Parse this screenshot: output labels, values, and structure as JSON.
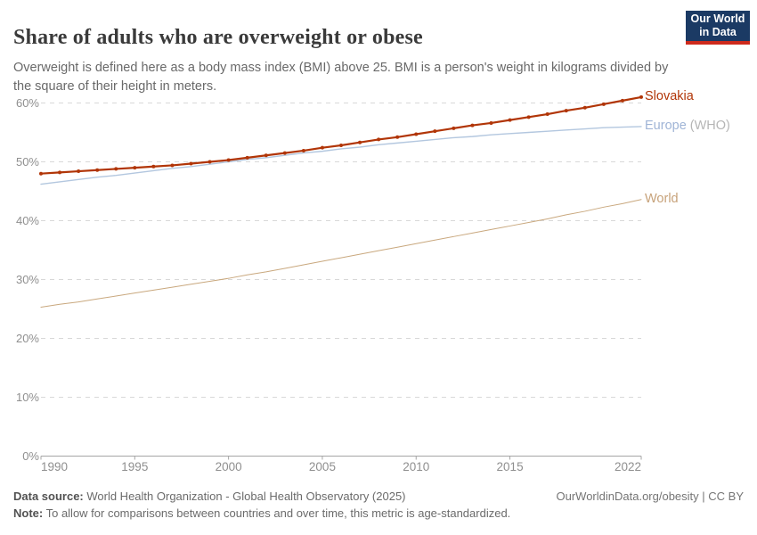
{
  "header": {
    "title": "Share of adults who are overweight or obese",
    "subtitle": "Overweight is defined here as a body mass index (BMI) above 25. BMI is a person's weight in kilograms divided by the square of their height in meters.",
    "logo": {
      "line1": "Our World",
      "line2": "in Data",
      "bg": "#1B3A64",
      "stripe": "#CE2A1C"
    }
  },
  "chart_data": {
    "type": "line",
    "title": "Share of adults who are overweight or obese",
    "xlabel": "",
    "ylabel": "",
    "x": [
      1990,
      1991,
      1992,
      1993,
      1994,
      1995,
      1996,
      1997,
      1998,
      1999,
      2000,
      2001,
      2002,
      2003,
      2004,
      2005,
      2006,
      2007,
      2008,
      2009,
      2010,
      2011,
      2012,
      2013,
      2014,
      2015,
      2016,
      2017,
      2018,
      2019,
      2020,
      2021,
      2022
    ],
    "series": [
      {
        "name": "Slovakia",
        "label": "Slovakia",
        "label_suffix": "",
        "color": "#B13507",
        "label_color": "#B13507",
        "markers": true,
        "line_width": 2.2,
        "values": [
          48.0,
          48.2,
          48.4,
          48.6,
          48.8,
          49.0,
          49.2,
          49.4,
          49.7,
          50.0,
          50.3,
          50.7,
          51.1,
          51.5,
          51.9,
          52.4,
          52.8,
          53.3,
          53.8,
          54.2,
          54.7,
          55.2,
          55.7,
          56.2,
          56.6,
          57.1,
          57.6,
          58.1,
          58.7,
          59.2,
          59.8,
          60.4,
          61.0
        ]
      },
      {
        "name": "Europe (WHO)",
        "label": "Europe",
        "label_suffix": " (WHO)",
        "color": "#B3C7DF",
        "label_color": "#9FB4D6",
        "markers": false,
        "line_width": 1.4,
        "values": [
          46.2,
          46.6,
          47.0,
          47.4,
          47.7,
          48.1,
          48.5,
          48.9,
          49.2,
          49.6,
          50.0,
          50.4,
          50.7,
          51.1,
          51.5,
          51.8,
          52.2,
          52.5,
          52.9,
          53.2,
          53.5,
          53.8,
          54.1,
          54.3,
          54.6,
          54.8,
          55.0,
          55.2,
          55.4,
          55.6,
          55.8,
          55.9,
          56.0
        ]
      },
      {
        "name": "World",
        "label": "World",
        "label_suffix": "",
        "color": "#C9A87E",
        "label_color": "#C7A27A",
        "markers": false,
        "line_width": 1,
        "values": [
          25.3,
          25.8,
          26.2,
          26.7,
          27.2,
          27.7,
          28.2,
          28.7,
          29.2,
          29.7,
          30.2,
          30.8,
          31.3,
          31.9,
          32.5,
          33.1,
          33.7,
          34.3,
          34.9,
          35.5,
          36.1,
          36.7,
          37.3,
          37.9,
          38.5,
          39.1,
          39.7,
          40.3,
          41.0,
          41.6,
          42.3,
          42.9,
          43.6
        ]
      }
    ],
    "ylim": [
      0,
      62
    ],
    "yticks": [
      0,
      10,
      20,
      30,
      40,
      50,
      60
    ],
    "ytick_labels": [
      "0%",
      "10%",
      "20%",
      "30%",
      "40%",
      "50%",
      "60%"
    ],
    "xticks": [
      1990,
      1995,
      2000,
      2005,
      2010,
      2015,
      2022
    ],
    "grid": "horizontal-dashed",
    "legend_position": "right-of-line-ends"
  },
  "theme": {
    "gridline_color": "#D8D8D8",
    "axis_color": "#A5A5A5",
    "tick_text_color": "#8F8F8F"
  },
  "footer": {
    "source_label": "Data source:",
    "source_text": " World Health Organization - Global Health Observatory (2025)",
    "note_label": "Note:",
    "note_text": " To allow for comparisons between countries and over time, this metric is age-standardized.",
    "link": "OurWorldinData.org/obesity | CC BY"
  }
}
